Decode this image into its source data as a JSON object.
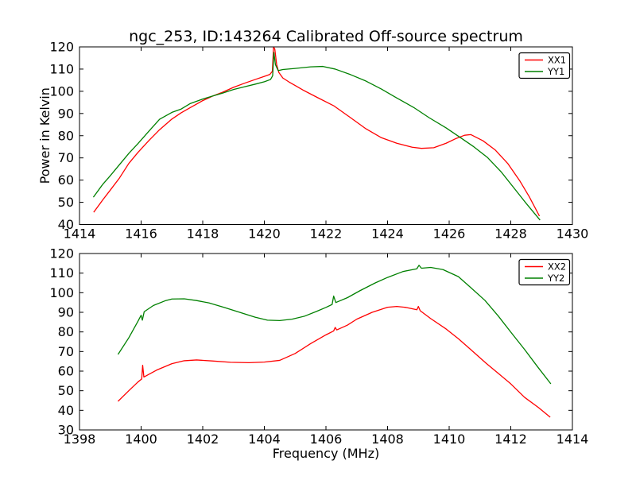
{
  "figure": {
    "background": "#ffffff",
    "frame_color": "#000000"
  },
  "chart_data": [
    {
      "type": "line",
      "title": "ngc_253, ID:143264 Calibrated Off-source spectrum",
      "xlabel": "",
      "ylabel": "Power in Kelvin",
      "xlim": [
        1414,
        1430
      ],
      "ylim": [
        40,
        120
      ],
      "xticks": [
        1414,
        1416,
        1418,
        1420,
        1422,
        1424,
        1426,
        1428,
        1430
      ],
      "yticks": [
        40,
        50,
        60,
        70,
        80,
        90,
        100,
        110,
        120
      ],
      "grid": false,
      "legend_position": "upper right",
      "series": [
        {
          "name": "XX1",
          "color": "#ff0000",
          "points": [
            [
              1414.46,
              45.5
            ],
            [
              1414.75,
              51.0
            ],
            [
              1415.0,
              55.5
            ],
            [
              1415.3,
              61.0
            ],
            [
              1415.6,
              67.5
            ],
            [
              1415.9,
              72.5
            ],
            [
              1416.25,
              77.8
            ],
            [
              1416.6,
              82.7
            ],
            [
              1417.0,
              87.5
            ],
            [
              1417.3,
              90.3
            ],
            [
              1417.6,
              92.7
            ],
            [
              1418.0,
              95.8
            ],
            [
              1418.35,
              98.0
            ],
            [
              1418.65,
              99.6
            ],
            [
              1419.0,
              101.8
            ],
            [
              1419.35,
              103.6
            ],
            [
              1419.7,
              105.3
            ],
            [
              1420.0,
              106.7
            ],
            [
              1420.18,
              107.6
            ],
            [
              1420.26,
              109.0
            ],
            [
              1420.3,
              120.0
            ],
            [
              1420.34,
              119.0
            ],
            [
              1420.4,
              112.0
            ],
            [
              1420.47,
              108.5
            ],
            [
              1420.6,
              106.0
            ],
            [
              1420.8,
              104.2
            ],
            [
              1421.0,
              102.6
            ],
            [
              1421.25,
              100.6
            ],
            [
              1421.75,
              97.0
            ],
            [
              1422.25,
              93.5
            ],
            [
              1422.8,
              88.1
            ],
            [
              1423.3,
              83.1
            ],
            [
              1423.8,
              79.1
            ],
            [
              1424.3,
              76.6
            ],
            [
              1424.8,
              74.8
            ],
            [
              1425.1,
              74.3
            ],
            [
              1425.5,
              74.6
            ],
            [
              1425.9,
              76.6
            ],
            [
              1426.2,
              78.6
            ],
            [
              1426.5,
              80.2
            ],
            [
              1426.7,
              80.5
            ],
            [
              1427.1,
              77.7
            ],
            [
              1427.5,
              73.5
            ],
            [
              1427.9,
              67.5
            ],
            [
              1428.3,
              59.5
            ],
            [
              1428.6,
              52.5
            ],
            [
              1428.93,
              43.8
            ]
          ]
        },
        {
          "name": "YY1",
          "color": "#008000",
          "points": [
            [
              1414.45,
              52.3
            ],
            [
              1414.75,
              58.0
            ],
            [
              1415.0,
              62.0
            ],
            [
              1415.3,
              67.0
            ],
            [
              1415.6,
              72.0
            ],
            [
              1415.9,
              76.5
            ],
            [
              1416.25,
              82.0
            ],
            [
              1416.6,
              87.4
            ],
            [
              1417.0,
              90.5
            ],
            [
              1417.3,
              92.0
            ],
            [
              1417.6,
              94.5
            ],
            [
              1418.0,
              96.5
            ],
            [
              1418.35,
              98.0
            ],
            [
              1418.65,
              99.2
            ],
            [
              1419.0,
              100.8
            ],
            [
              1419.35,
              102.0
            ],
            [
              1419.7,
              103.2
            ],
            [
              1420.0,
              104.3
            ],
            [
              1420.2,
              105.3
            ],
            [
              1420.27,
              107.0
            ],
            [
              1420.31,
              117.5
            ],
            [
              1420.36,
              112.0
            ],
            [
              1420.45,
              109.3
            ],
            [
              1420.6,
              109.8
            ],
            [
              1421.0,
              110.3
            ],
            [
              1421.5,
              111.0
            ],
            [
              1421.9,
              111.2
            ],
            [
              1422.3,
              110.0
            ],
            [
              1422.8,
              107.5
            ],
            [
              1423.3,
              104.6
            ],
            [
              1423.8,
              101.0
            ],
            [
              1424.3,
              97.0
            ],
            [
              1424.85,
              92.7
            ],
            [
              1425.35,
              88.1
            ],
            [
              1425.9,
              83.5
            ],
            [
              1426.4,
              78.8
            ],
            [
              1426.8,
              75.0
            ],
            [
              1427.25,
              70.1
            ],
            [
              1427.7,
              63.5
            ],
            [
              1428.1,
              56.5
            ],
            [
              1428.5,
              49.5
            ],
            [
              1428.95,
              42.0
            ]
          ]
        }
      ]
    },
    {
      "type": "line",
      "title": "",
      "xlabel": "Frequency (MHz)",
      "ylabel": "",
      "xlim": [
        1398,
        1414
      ],
      "ylim": [
        30,
        120
      ],
      "xticks": [
        1398,
        1400,
        1402,
        1404,
        1406,
        1408,
        1410,
        1412,
        1414
      ],
      "yticks": [
        30,
        40,
        50,
        60,
        70,
        80,
        90,
        100,
        110,
        120
      ],
      "grid": false,
      "legend_position": "upper right",
      "series": [
        {
          "name": "XX2",
          "color": "#ff0000",
          "points": [
            [
              1399.25,
              44.6
            ],
            [
              1399.6,
              50.0
            ],
            [
              1399.9,
              54.5
            ],
            [
              1400.02,
              56.0
            ],
            [
              1400.05,
              63.0
            ],
            [
              1400.09,
              57.0
            ],
            [
              1400.5,
              60.5
            ],
            [
              1401.0,
              63.8
            ],
            [
              1401.4,
              65.3
            ],
            [
              1401.8,
              65.7
            ],
            [
              1402.3,
              65.2
            ],
            [
              1402.9,
              64.5
            ],
            [
              1403.5,
              64.3
            ],
            [
              1404.0,
              64.6
            ],
            [
              1404.5,
              65.5
            ],
            [
              1405.0,
              69.0
            ],
            [
              1405.5,
              74.0
            ],
            [
              1406.0,
              78.5
            ],
            [
              1406.25,
              80.5
            ],
            [
              1406.3,
              82.3
            ],
            [
              1406.35,
              81.0
            ],
            [
              1406.7,
              83.5
            ],
            [
              1407.0,
              86.5
            ],
            [
              1407.5,
              90.0
            ],
            [
              1408.0,
              92.6
            ],
            [
              1408.3,
              93.0
            ],
            [
              1408.6,
              92.5
            ],
            [
              1408.95,
              91.3
            ],
            [
              1409.0,
              93.0
            ],
            [
              1409.06,
              90.8
            ],
            [
              1409.4,
              86.8
            ],
            [
              1409.9,
              81.5
            ],
            [
              1410.3,
              76.5
            ],
            [
              1410.7,
              71.0
            ],
            [
              1411.2,
              64.0
            ],
            [
              1411.6,
              58.8
            ],
            [
              1412.0,
              53.5
            ],
            [
              1412.45,
              46.6
            ],
            [
              1412.9,
              41.4
            ],
            [
              1413.28,
              36.5
            ]
          ]
        },
        {
          "name": "YY2",
          "color": "#008000",
          "points": [
            [
              1399.25,
              68.5
            ],
            [
              1399.6,
              77.0
            ],
            [
              1399.9,
              85.5
            ],
            [
              1400.0,
              88.5
            ],
            [
              1400.04,
              86.0
            ],
            [
              1400.1,
              90.3
            ],
            [
              1400.4,
              93.5
            ],
            [
              1400.8,
              96.0
            ],
            [
              1401.0,
              96.8
            ],
            [
              1401.4,
              96.9
            ],
            [
              1401.8,
              96.0
            ],
            [
              1402.2,
              94.8
            ],
            [
              1402.7,
              92.5
            ],
            [
              1403.2,
              90.0
            ],
            [
              1403.7,
              87.5
            ],
            [
              1404.1,
              86.0
            ],
            [
              1404.5,
              85.8
            ],
            [
              1404.9,
              86.5
            ],
            [
              1405.3,
              88.0
            ],
            [
              1405.7,
              90.5
            ],
            [
              1406.0,
              92.5
            ],
            [
              1406.2,
              94.0
            ],
            [
              1406.25,
              98.3
            ],
            [
              1406.32,
              95.0
            ],
            [
              1406.7,
              97.5
            ],
            [
              1407.1,
              101.0
            ],
            [
              1407.6,
              105.0
            ],
            [
              1408.0,
              107.8
            ],
            [
              1408.5,
              110.8
            ],
            [
              1408.95,
              112.2
            ],
            [
              1409.02,
              114.0
            ],
            [
              1409.1,
              112.5
            ],
            [
              1409.4,
              112.9
            ],
            [
              1409.8,
              111.8
            ],
            [
              1410.3,
              108.2
            ],
            [
              1410.7,
              102.6
            ],
            [
              1411.16,
              96.1
            ],
            [
              1411.6,
              88.0
            ],
            [
              1412.0,
              79.9
            ],
            [
              1412.45,
              71.0
            ],
            [
              1412.9,
              61.6
            ],
            [
              1413.3,
              53.5
            ]
          ]
        }
      ]
    }
  ]
}
